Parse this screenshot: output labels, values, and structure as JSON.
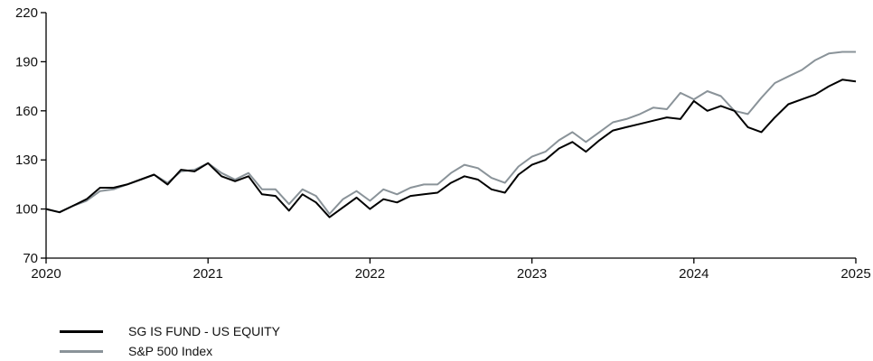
{
  "chart_data": {
    "type": "line",
    "title": "",
    "xlabel": "",
    "ylabel": "",
    "xlim": [
      2020.0,
      2025.0
    ],
    "ylim": [
      70,
      220
    ],
    "xticks": [
      2020,
      2021,
      2022,
      2023,
      2024,
      2025
    ],
    "xtick_labels": [
      "2020",
      "2021",
      "2022",
      "2023",
      "2024",
      "2025"
    ],
    "yticks": [
      70,
      100,
      130,
      160,
      190,
      220
    ],
    "ytick_labels": [
      "70",
      "100",
      "130",
      "160",
      "190",
      "220"
    ],
    "grid": false,
    "legend_position": "bottom-left",
    "x": [
      2020.0,
      2020.083,
      2020.167,
      2020.25,
      2020.333,
      2020.417,
      2020.5,
      2020.583,
      2020.667,
      2020.75,
      2020.833,
      2020.917,
      2021.0,
      2021.083,
      2021.167,
      2021.25,
      2021.333,
      2021.417,
      2021.5,
      2021.583,
      2021.667,
      2021.75,
      2021.833,
      2021.917,
      2022.0,
      2022.083,
      2022.167,
      2022.25,
      2022.333,
      2022.417,
      2022.5,
      2022.583,
      2022.667,
      2022.75,
      2022.833,
      2022.917,
      2023.0,
      2023.083,
      2023.167,
      2023.25,
      2023.333,
      2023.417,
      2023.5,
      2023.583,
      2023.667,
      2023.75,
      2023.833,
      2023.917,
      2024.0,
      2024.083,
      2024.167,
      2024.25,
      2024.333,
      2024.417,
      2024.5,
      2024.583,
      2024.667,
      2024.75,
      2024.833,
      2024.917,
      2025.0
    ],
    "series": [
      {
        "name": "SG IS FUND - US EQUITY",
        "color": "#000000",
        "values": [
          100,
          98,
          102,
          106,
          113,
          113,
          115,
          118,
          121,
          115,
          124,
          123,
          128,
          120,
          117,
          120,
          109,
          108,
          99,
          109,
          104,
          95,
          101,
          107,
          100,
          106,
          104,
          108,
          109,
          110,
          116,
          120,
          118,
          112,
          110,
          121,
          127,
          130,
          137,
          141,
          135,
          142,
          148,
          150,
          152,
          154,
          156,
          155,
          166,
          160,
          163,
          160,
          150,
          147,
          156,
          164,
          167,
          170,
          175,
          179,
          178
        ]
      },
      {
        "name": "S&P 500 Index",
        "color": "#8a9399",
        "values": [
          100,
          98,
          102,
          105,
          111,
          112,
          115,
          118,
          121,
          116,
          123,
          124,
          128,
          122,
          118,
          122,
          112,
          112,
          103,
          112,
          108,
          97,
          106,
          111,
          105,
          112,
          109,
          113,
          115,
          115,
          122,
          127,
          125,
          119,
          116,
          126,
          132,
          135,
          142,
          147,
          141,
          147,
          153,
          155,
          158,
          162,
          161,
          171,
          167,
          172,
          169,
          160,
          158,
          168,
          177,
          181,
          185,
          191,
          195,
          196,
          196
        ]
      }
    ]
  }
}
